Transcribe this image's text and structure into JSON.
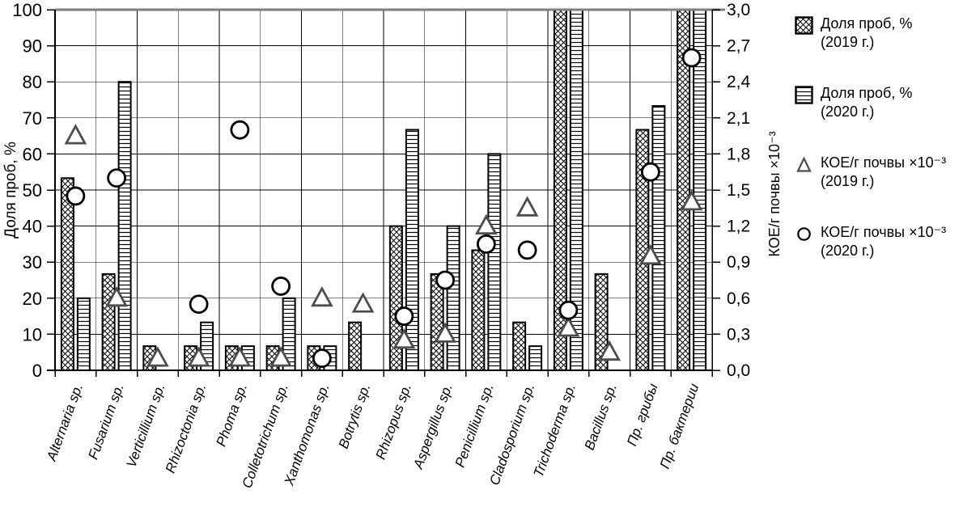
{
  "colors": {
    "background": "#ffffff",
    "ink": "#000000",
    "marker_stroke": "#4d4d4d",
    "frame_top": "#7f7f7f"
  },
  "legend": {
    "items": [
      {
        "swatch": "crosshatch",
        "line1": "Доля проб, %",
        "line2": "(2019 г.)"
      },
      {
        "swatch": "horizontal-lines",
        "line1": "Доля проб, %",
        "line2": "(2020 г.)"
      },
      {
        "swatch": "triangle",
        "line1": "КОЕ/г почвы ×10⁻³",
        "line2": "(2019 г.)"
      },
      {
        "swatch": "circle",
        "line1": "КОЕ/г почвы ×10⁻³",
        "line2": "(2020 г.)"
      }
    ]
  },
  "chart_data": {
    "type": "bar",
    "title": "",
    "categories": [
      "Alternaria sp.",
      "Fusarium sp.",
      "Verticillium sp.",
      "Rhizoctonia sp.",
      "Phoma sp.",
      "Colletotrichum sp.",
      "Xanthomonas sp.",
      "Botrytis sp.",
      "Rhizopus sp.",
      "Aspergillus sp.",
      "Penicillium sp.",
      "Cladosporium sp.",
      "Trichoderma sp.",
      "Bacillus sp.",
      "Пр. грибы",
      "Пр. бактерии"
    ],
    "series": [
      {
        "name": "Доля проб, % (2019 г.)",
        "type": "bar",
        "axis": "left",
        "pattern": "crosshatch",
        "values": [
          53.3,
          26.7,
          6.7,
          6.7,
          6.7,
          6.7,
          6.7,
          13.3,
          40,
          26.7,
          33.3,
          13.3,
          100,
          26.7,
          66.7,
          100
        ]
      },
      {
        "name": "Доля проб, % (2020 г.)",
        "type": "bar",
        "axis": "left",
        "pattern": "horizontal-lines",
        "values": [
          20,
          80,
          0,
          13.3,
          6.7,
          20,
          6.7,
          0,
          66.7,
          40,
          60,
          6.7,
          100,
          0,
          73.3,
          100
        ]
      },
      {
        "name": "КОЕ/г почвы ×10⁻³ (2019 г.)",
        "type": "scatter",
        "axis": "right",
        "marker": "triangle",
        "values": [
          1.95,
          0.6,
          0.1,
          0.1,
          0.1,
          0.1,
          0.6,
          0.55,
          0.25,
          0.3,
          1.2,
          1.35,
          0.35,
          0.15,
          0.95,
          1.4
        ]
      },
      {
        "name": "КОЕ/г почвы ×10⁻³ (2020 г.)",
        "type": "scatter",
        "axis": "right",
        "marker": "circle",
        "values": [
          1.45,
          1.6,
          null,
          0.55,
          2.0,
          0.7,
          0.1,
          null,
          0.45,
          0.75,
          1.05,
          1.0,
          0.5,
          null,
          1.65,
          2.6
        ]
      }
    ],
    "left_axis": {
      "label": "Доля проб, %",
      "min": 0,
      "max": 100,
      "step": 10,
      "tick_labels": [
        "0",
        "10",
        "20",
        "30",
        "40",
        "50",
        "60",
        "70",
        "80",
        "90",
        "100"
      ]
    },
    "right_axis": {
      "label": "КОЕ/г почвы ×10⁻³",
      "min": 0,
      "max": 3.0,
      "step": 0.3,
      "tick_labels": [
        "0,0",
        "0,3",
        "0,6",
        "0,9",
        "1,2",
        "1,5",
        "1,8",
        "2,1",
        "2,4",
        "2,7",
        "3,0"
      ]
    },
    "grid": true,
    "legend_position": "right"
  }
}
